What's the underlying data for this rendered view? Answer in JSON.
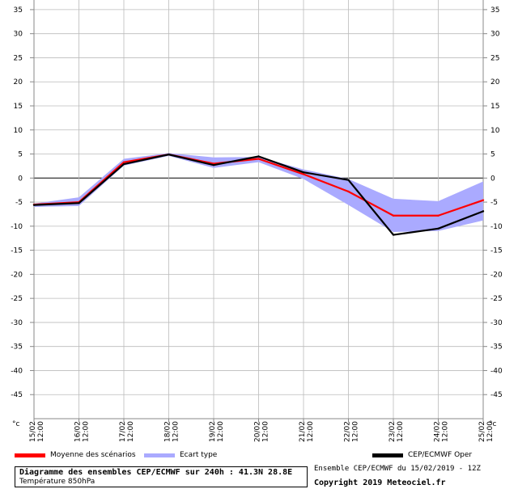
{
  "chart_data": {
    "type": "line",
    "x": [
      "15/02 12:00",
      "16/02 12:00",
      "17/02 12:00",
      "18/02 12:00",
      "19/02 12:00",
      "20/02 12:00",
      "21/02 12:00",
      "22/02 12:00",
      "23/02 12:00",
      "24/02 12:00",
      "25/02 12:00"
    ],
    "ylim": [
      -50,
      37
    ],
    "yticks": [
      35,
      30,
      25,
      20,
      15,
      10,
      5,
      0,
      -5,
      -10,
      -15,
      -20,
      -25,
      -30,
      -35,
      -40,
      -45
    ],
    "yunit": "°c",
    "grid": true,
    "series": [
      {
        "name": "Moyenne des scénarios",
        "color": "#ff0000",
        "values": [
          -5.5,
          -5.0,
          3.3,
          4.9,
          3.0,
          4.0,
          0.8,
          -2.8,
          -7.8,
          -7.8,
          -4.6
        ]
      },
      {
        "name": "CEP/ECMWF Oper",
        "color": "#000000",
        "values": [
          -5.6,
          -5.2,
          2.9,
          4.9,
          2.7,
          4.5,
          1.2,
          -0.4,
          -11.8,
          -10.5,
          -6.9
        ]
      }
    ],
    "band": {
      "name": "Ecart type",
      "color": "#aaaaff",
      "upper": [
        -5.3,
        -4.0,
        4.0,
        5.2,
        4.3,
        4.4,
        1.8,
        -0.2,
        -4.3,
        -4.8,
        -0.7
      ],
      "lower": [
        -6.0,
        -5.8,
        2.6,
        4.6,
        2.1,
        3.3,
        -0.2,
        -5.6,
        -11.2,
        -11.0,
        -8.8
      ]
    }
  },
  "info": {
    "title": "Diagramme des ensembles CEP/ECMWF sur 240h : 41.3N 28.8E",
    "subtitle": "Température 850hPa",
    "run": "Ensemble CEP/ECMWF du 15/02/2019 - 12Z",
    "copyright": "Copyright 2019 Meteociel.fr"
  }
}
